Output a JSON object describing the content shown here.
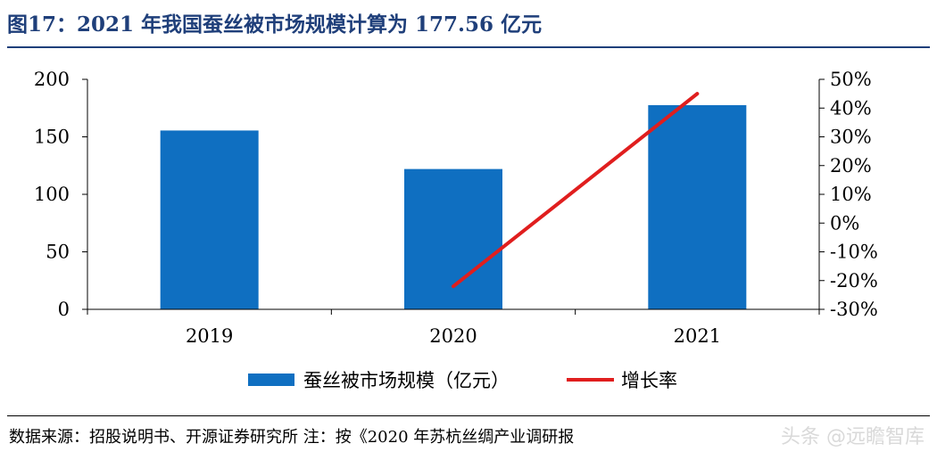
{
  "title": "图17：2021 年我国蚕丝被市场规模计算为 177.56 亿元",
  "source": "数据来源：招股说明书、开源证券研究所 注：按《2020 年苏杭丝绸产业调研报",
  "watermark": "头条 @远瞻智库",
  "colors": {
    "bar": "#0f6fc1",
    "line": "#e01e1e",
    "title": "#1f3f7a"
  },
  "chart_data": {
    "type": "bar",
    "categories": [
      "2019",
      "2020",
      "2021"
    ],
    "series": [
      {
        "name": "蚕丝被市场规模（亿元）",
        "type": "bar",
        "axis": "left",
        "values": [
          155.5,
          122,
          177.56
        ]
      },
      {
        "name": "增长率",
        "type": "line",
        "axis": "right",
        "values": [
          null,
          -22,
          45
        ]
      }
    ],
    "left_axis": {
      "ylim": [
        0,
        200
      ],
      "ticks": [
        "0",
        "50",
        "100",
        "150",
        "200"
      ]
    },
    "right_axis": {
      "ylim": [
        -30,
        50
      ],
      "ticks": [
        "-30%",
        "-20%",
        "-10%",
        "0%",
        "10%",
        "20%",
        "30%",
        "40%",
        "50%"
      ]
    },
    "grid": false,
    "legend_position": "bottom"
  }
}
